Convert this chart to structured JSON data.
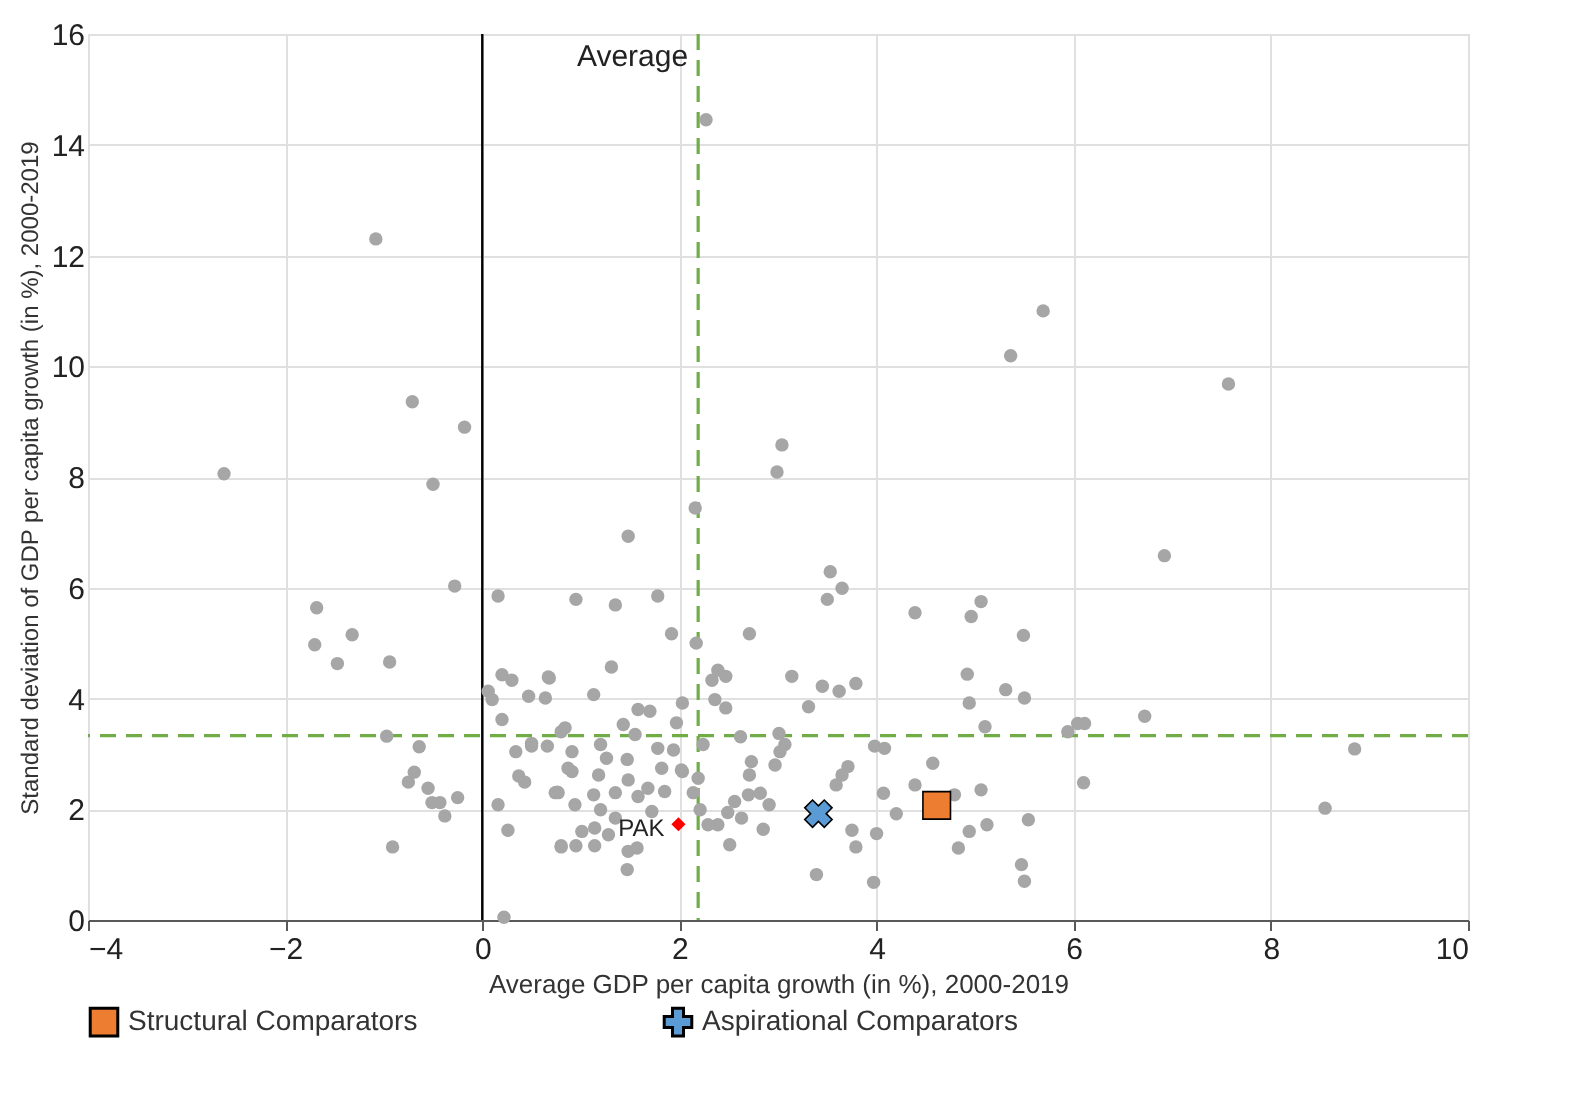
{
  "chart_data": {
    "type": "scatter",
    "xlabel": "Average GDP per capita growth (in %), 2000-2019",
    "ylabel": "Standard deviation of GDP per capita growth (in %), 2000-2019",
    "xlim": [
      -4,
      10
    ],
    "xticks": [
      -4,
      -2,
      0,
      2,
      4,
      6,
      8,
      10
    ],
    "ylim": [
      0,
      16
    ],
    "yticks": [
      0,
      2,
      4,
      6,
      8,
      10,
      12,
      14,
      16
    ],
    "grid": true,
    "legend": "bottom",
    "series": [
      {
        "color": "#a6a6a6",
        "marker": "circle",
        "x": [
          2.27,
          -1.08,
          -0.71,
          -0.18,
          -2.62,
          -0.5,
          2.16,
          1.48,
          3.04,
          2.99,
          5.69,
          5.36,
          7.57,
          6.92,
          -0.28,
          0.16,
          -1.68,
          -1.7,
          -1.32,
          -1.47,
          -0.94,
          0.2,
          0.3,
          0.67,
          0.06,
          0.1,
          0.47,
          0.64,
          0.2,
          -0.97,
          -0.64,
          0.34,
          0.5,
          0.66,
          0.8,
          -0.69,
          -0.75,
          -0.55,
          -0.51,
          -0.43,
          -0.25,
          -0.38,
          0.37,
          0.43,
          0.76,
          0.16,
          0.26,
          -0.91,
          0.8,
          0.22,
          0.95,
          1.35,
          1.78,
          1.92,
          2.17,
          2.71,
          3.53,
          3.65,
          3.5,
          4.39,
          4.96,
          5.06,
          1.31,
          0.68,
          1.13,
          2.33,
          2.39,
          2.47,
          2.36,
          2.47,
          2.03,
          1.58,
          1.7,
          1.97,
          3.14,
          3.45,
          3.62,
          3.79,
          3.31,
          4.92,
          4.94,
          5.1,
          2.62,
          3.01,
          1.43,
          0.84,
          0.5,
          0.91,
          1.2,
          1.55,
          1.78,
          1.94,
          2.24,
          1.26,
          1.47,
          1.82,
          2.02,
          0.91,
          1.18,
          1.48,
          1.68,
          0.77,
          1.13,
          1.35,
          1.58,
          1.85,
          2.14,
          2.73,
          2.71,
          2.7,
          2.82,
          2.97,
          3.02,
          3.07,
          2.91,
          2.56,
          2.63,
          2.49,
          2.85,
          2.39,
          2.29,
          2.21,
          2.51,
          3.65,
          3.71,
          3.59,
          3.75,
          3.79,
          3.39,
          3.97,
          4.0,
          3.98,
          4.08,
          4.07,
          4.2,
          4.39,
          4.57,
          4.79,
          5.06,
          4.94,
          5.12,
          4.83,
          0.74,
          0.87,
          0.94,
          1.01,
          0.8,
          0.95,
          1.14,
          1.28,
          1.48,
          1.57,
          1.47,
          1.14,
          1.35,
          1.2,
          1.72,
          2.03,
          2.19,
          5.49,
          5.31,
          5.5,
          6.72,
          5.94,
          6.04,
          6.11,
          8.85,
          6.1,
          8.55,
          5.54,
          5.47,
          5.5
        ],
        "values": [
          14.45,
          12.3,
          9.36,
          8.9,
          8.06,
          7.87,
          7.44,
          6.93,
          8.58,
          8.09,
          11.0,
          10.19,
          9.68,
          6.58,
          6.03,
          5.85,
          5.64,
          4.97,
          5.15,
          4.63,
          4.66,
          4.43,
          4.33,
          4.39,
          4.13,
          3.98,
          4.04,
          4.01,
          3.62,
          3.32,
          3.13,
          3.04,
          3.14,
          3.14,
          3.4,
          2.67,
          2.49,
          2.38,
          2.12,
          2.12,
          2.21,
          1.88,
          2.6,
          2.49,
          2.31,
          2.08,
          1.62,
          1.32,
          1.32,
          0.05,
          5.79,
          5.69,
          5.85,
          5.17,
          5.0,
          5.17,
          6.29,
          5.99,
          5.79,
          5.55,
          5.48,
          5.75,
          4.57,
          4.37,
          4.07,
          4.33,
          4.51,
          4.4,
          3.98,
          3.83,
          3.92,
          3.8,
          3.77,
          3.56,
          4.4,
          4.22,
          4.13,
          4.27,
          3.85,
          4.44,
          3.92,
          3.49,
          3.31,
          3.37,
          3.53,
          3.47,
          3.19,
          3.04,
          3.17,
          3.35,
          3.1,
          3.07,
          3.17,
          2.92,
          2.9,
          2.74,
          2.71,
          2.68,
          2.62,
          2.53,
          2.38,
          2.3,
          2.26,
          2.3,
          2.23,
          2.32,
          2.3,
          2.86,
          2.62,
          2.26,
          2.29,
          2.8,
          3.04,
          3.17,
          2.08,
          2.14,
          1.84,
          1.94,
          1.64,
          1.72,
          1.72,
          1.99,
          1.36,
          2.62,
          2.77,
          2.44,
          1.62,
          1.32,
          0.82,
          0.68,
          1.56,
          3.14,
          3.1,
          2.29,
          1.92,
          2.44,
          2.83,
          2.26,
          2.35,
          1.6,
          1.72,
          1.3,
          2.3,
          2.74,
          2.08,
          1.6,
          1.34,
          1.34,
          1.34,
          1.54,
          1.24,
          1.3,
          0.91,
          1.66,
          1.84,
          1.99,
          1.96,
          2.68,
          2.56,
          5.14,
          4.16,
          4.01,
          3.68,
          3.4,
          3.55,
          3.55,
          3.09,
          2.48,
          2.02,
          1.81,
          1.0,
          0.7
        ]
      },
      {
        "color": "#ff0000",
        "marker": "diamond",
        "x": [
          1.99
        ],
        "values": [
          1.73
        ]
      },
      {
        "name": "Structural Comparators",
        "color": "#ed7d31",
        "marker": "square",
        "x": [
          4.61
        ],
        "values": [
          2.07
        ]
      },
      {
        "name": "Aspirational Comparators",
        "color": "#5b9bd5",
        "marker": "cross",
        "x": [
          3.41
        ],
        "values": [
          1.92
        ]
      }
    ],
    "ref_lines": [
      {
        "axis": "x",
        "value": 0,
        "color": "#000000",
        "line_style": "solid"
      },
      {
        "axis": "x",
        "value": 2.19,
        "label": "Average",
        "color": "#70ad47",
        "line_style": "dashed"
      },
      {
        "axis": "y",
        "value": 3.33,
        "color": "#70ad47",
        "line_style": "dashed"
      }
    ],
    "annotations": [
      {
        "text": "PAK",
        "x": 1.99,
        "y": 1.73
      }
    ]
  }
}
